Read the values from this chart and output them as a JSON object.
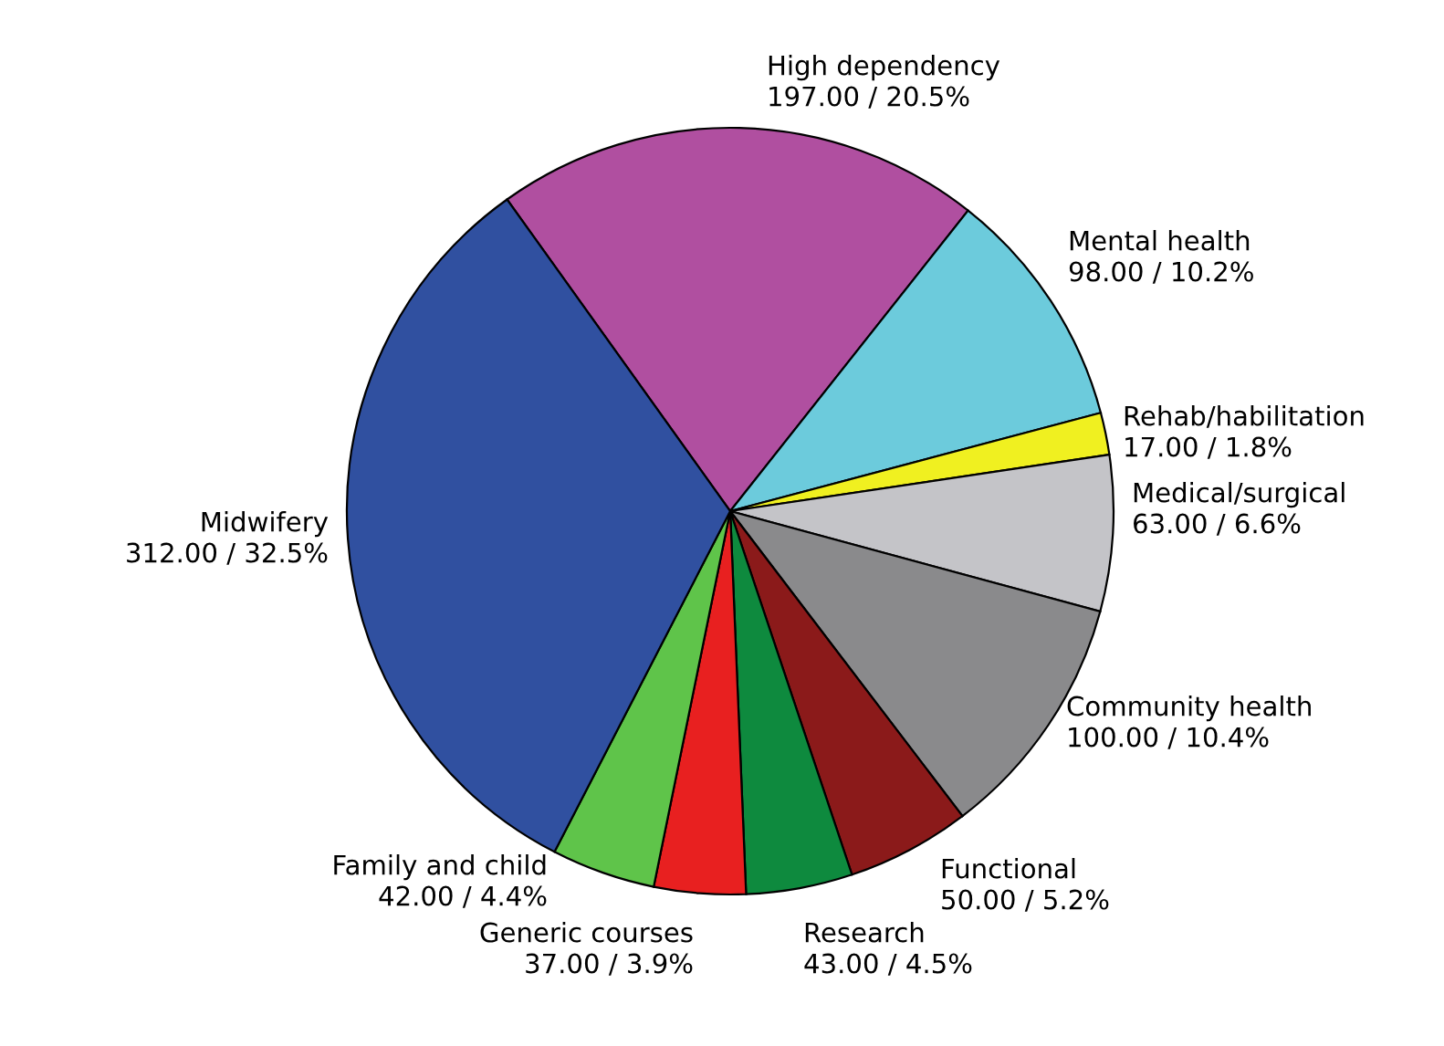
{
  "chart_data": {
    "type": "pie",
    "categories": [
      "High dependency",
      "Mental health",
      "Rehab/habilitation",
      "Medical/surgical",
      "Community health",
      "Functional",
      "Research",
      "Generic courses",
      "Family and child",
      "Midwifery"
    ],
    "values": [
      197,
      98,
      17,
      63,
      100,
      50,
      43,
      37,
      42,
      312
    ],
    "value_labels": [
      "197.00 / 20.5%",
      "98.00 / 10.2%",
      "17.00 / 1.8%",
      "63.00 / 6.6%",
      "100.00 / 10.4%",
      "50.00 / 5.2%",
      "43.00 / 4.5%",
      "37.00 / 3.9%",
      "42.00 / 4.4%",
      "312.00 / 32.5%"
    ],
    "colors": [
      "#b04fa0",
      "#6ccbdc",
      "#f0f020",
      "#c4c4c8",
      "#8a8a8c",
      "#8b1a1a",
      "#0e8a3e",
      "#e82020",
      "#5fc44a",
      "#3050a0"
    ]
  }
}
